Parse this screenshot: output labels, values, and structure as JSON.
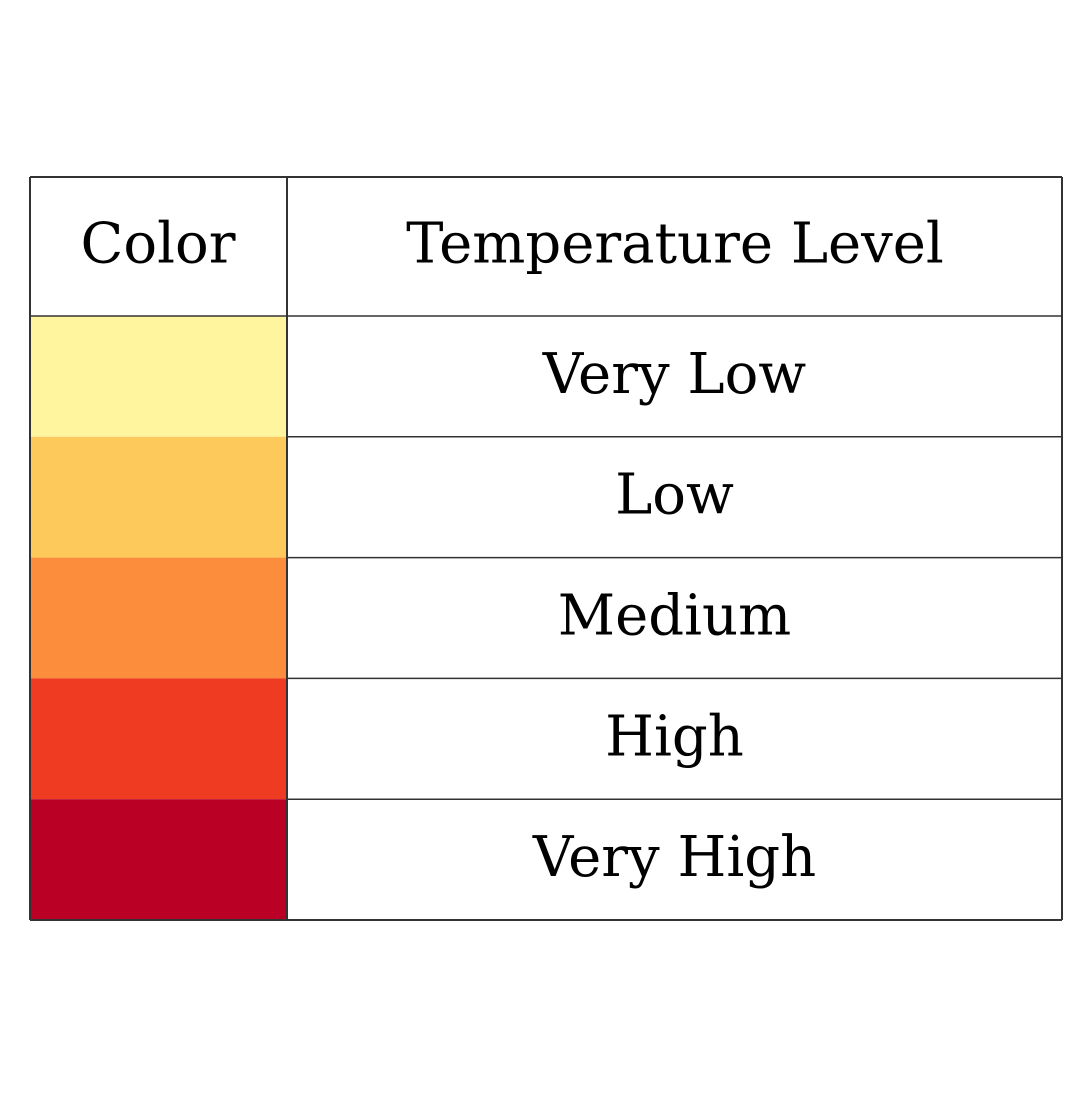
{
  "table": {
    "header": [
      "Color",
      "Temperature Level"
    ],
    "rows": [
      {
        "color": "#fff59e",
        "label": "Very Low"
      },
      {
        "color": "#fec95b",
        "label": "Low"
      },
      {
        "color": "#fc8d3d",
        "label": "Medium"
      },
      {
        "color": "#ee3b21",
        "label": "High"
      },
      {
        "color": "#bb0026",
        "label": "Very High"
      }
    ]
  }
}
